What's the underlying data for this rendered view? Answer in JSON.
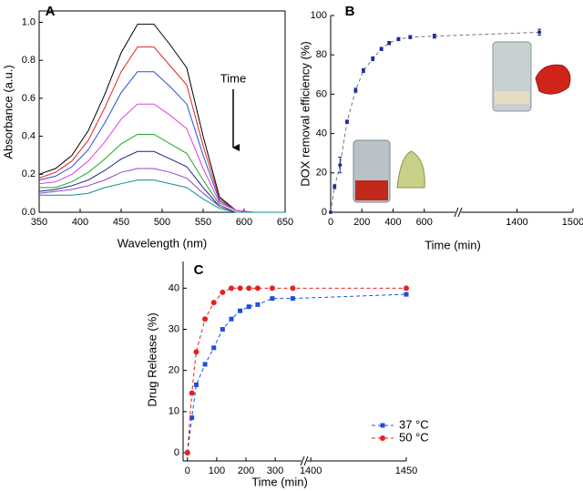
{
  "chart_data": [
    {
      "type": "line",
      "panel_label": "A",
      "x_label": "Wavelength (nm)",
      "y_label": "Absorbance (a.u.)",
      "annotation": "Time",
      "x": [
        350,
        370,
        390,
        410,
        430,
        450,
        470,
        490,
        510,
        530,
        550,
        570,
        590,
        610,
        630,
        650
      ],
      "series": [
        {
          "color": "#000000",
          "values": [
            0.2,
            0.23,
            0.3,
            0.43,
            0.62,
            0.84,
            0.99,
            0.99,
            0.88,
            0.76,
            0.4,
            0.08,
            0.01,
            0,
            0,
            0
          ]
        },
        {
          "color": "#e8201e",
          "values": [
            0.18,
            0.21,
            0.27,
            0.38,
            0.55,
            0.74,
            0.87,
            0.87,
            0.77,
            0.67,
            0.35,
            0.07,
            0.01,
            0,
            0,
            0
          ]
        },
        {
          "color": "#1f4fe0",
          "values": [
            0.17,
            0.19,
            0.24,
            0.33,
            0.47,
            0.63,
            0.74,
            0.74,
            0.66,
            0.57,
            0.3,
            0.06,
            0.01,
            0,
            0,
            0
          ]
        },
        {
          "color": "#e040e0",
          "values": [
            0.15,
            0.16,
            0.2,
            0.27,
            0.37,
            0.49,
            0.57,
            0.57,
            0.51,
            0.44,
            0.23,
            0.05,
            0.01,
            0,
            0,
            0
          ]
        },
        {
          "color": "#1fa81f",
          "values": [
            0.13,
            0.13,
            0.16,
            0.21,
            0.28,
            0.36,
            0.41,
            0.41,
            0.36,
            0.31,
            0.17,
            0.04,
            0,
            0,
            0,
            0
          ]
        },
        {
          "color": "#1a237e",
          "values": [
            0.11,
            0.12,
            0.14,
            0.17,
            0.22,
            0.28,
            0.32,
            0.32,
            0.28,
            0.24,
            0.13,
            0.03,
            0,
            0,
            0,
            0
          ]
        },
        {
          "color": "#8e44c8",
          "values": [
            0.1,
            0.11,
            0.12,
            0.14,
            0.17,
            0.21,
            0.23,
            0.23,
            0.21,
            0.18,
            0.1,
            0.03,
            0,
            0,
            0,
            0
          ]
        },
        {
          "color": "#0e8f8f",
          "values": [
            0.09,
            0.09,
            0.09,
            0.1,
            0.13,
            0.15,
            0.17,
            0.17,
            0.15,
            0.13,
            0.07,
            0.02,
            0,
            0,
            0,
            0
          ]
        }
      ],
      "xlim": [
        350,
        650
      ],
      "xticks": [
        350,
        400,
        450,
        500,
        550,
        600,
        650
      ],
      "ylim": [
        0,
        1.06
      ],
      "yticks": [
        {
          "value": 0,
          "label": "0.0"
        },
        {
          "value": 0.2,
          "label": "0.2"
        },
        {
          "value": 0.4,
          "label": "0.4"
        },
        {
          "value": 0.6,
          "label": "0.6"
        },
        {
          "value": 0.8,
          "label": "0.8"
        },
        {
          "value": 1.0,
          "label": "1.0"
        }
      ]
    },
    {
      "type": "scatter",
      "panel_label": "B",
      "x_label": "Time (min)",
      "y_label": "DOX removal efficiency (%)",
      "x": [
        0,
        25,
        60,
        105,
        160,
        210,
        270,
        325,
        375,
        435,
        510,
        665,
        1440
      ],
      "values": [
        0,
        13,
        24,
        46,
        62,
        72,
        78,
        83,
        86,
        88,
        89,
        89.5,
        91.5
      ],
      "errors": [
        0,
        1,
        4,
        0.8,
        1,
        1,
        1,
        0.8,
        0.8,
        0.8,
        0.8,
        1,
        1.5
      ],
      "color": "#1c2a9c",
      "line_style": "dashed",
      "xlim": [
        0,
        1500
      ],
      "xbreak": [
        800,
        1300
      ],
      "xticks": [
        0,
        200,
        400,
        600,
        1400,
        1500
      ],
      "ylim": [
        0,
        100
      ],
      "yticks": [
        0,
        20,
        40,
        60,
        80,
        100
      ]
    },
    {
      "type": "scatter",
      "panel_label": "C",
      "x_label": "Time (min)",
      "y_label": "Drug Release (%)",
      "x": [
        0,
        15,
        30,
        60,
        90,
        120,
        150,
        180,
        210,
        240,
        290,
        360,
        1450
      ],
      "series": [
        {
          "name": "37 °C",
          "color": "#1f4fe0",
          "marker": "square",
          "values": [
            0,
            8.5,
            16.5,
            21.5,
            25.5,
            30,
            32.5,
            34.5,
            35.5,
            36,
            37.5,
            37.5,
            38.5
          ]
        },
        {
          "name": "50 °C",
          "color": "#e8201e",
          "marker": "circle",
          "values": [
            0,
            14.5,
            24.5,
            32.5,
            36.5,
            39,
            40,
            40,
            40,
            40,
            40,
            40,
            40
          ]
        }
      ],
      "line_style": "dashed",
      "xlim": [
        -15,
        1450
      ],
      "xbreak": [
        390,
        1398
      ],
      "xticks": [
        0,
        100,
        200,
        300,
        1400,
        1450
      ],
      "ylim": [
        -2,
        46.5
      ],
      "yticks": [
        0,
        10,
        20,
        30,
        40
      ]
    }
  ]
}
